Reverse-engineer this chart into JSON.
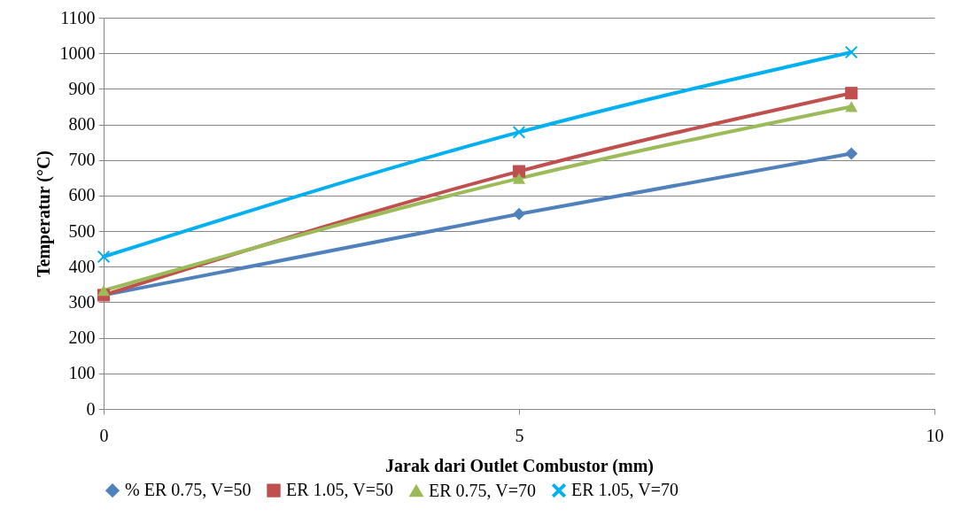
{
  "chart_data": {
    "type": "line",
    "xlabel": "Jarak dari Outlet Combustor (mm)",
    "ylabel": "Temperatur (°C)",
    "x": [
      0,
      5,
      9
    ],
    "xlim": [
      0,
      10
    ],
    "xticks": [
      0,
      5,
      10
    ],
    "ylim": [
      0,
      1100
    ],
    "yticks": [
      0,
      100,
      200,
      300,
      400,
      500,
      600,
      700,
      800,
      900,
      1000,
      1100
    ],
    "grid": "y",
    "legend": "bottom",
    "line_style": "solid",
    "series": [
      {
        "name": "% ER 0.75, V=50",
        "color": "#4f81bd",
        "marker": "diamond",
        "values": [
          320,
          548,
          718
        ]
      },
      {
        "name": "ER 1.05, V=50",
        "color": "#c0504d",
        "marker": "square",
        "values": [
          320,
          668,
          888
        ]
      },
      {
        "name": "ER 0.75, V=70",
        "color": "#9bbb59",
        "marker": "triangle",
        "values": [
          333,
          648,
          850
        ]
      },
      {
        "name": "ER 1.05, V=70",
        "color": "#00b0f0",
        "marker": "cross",
        "values": [
          428,
          778,
          1003
        ]
      }
    ]
  }
}
